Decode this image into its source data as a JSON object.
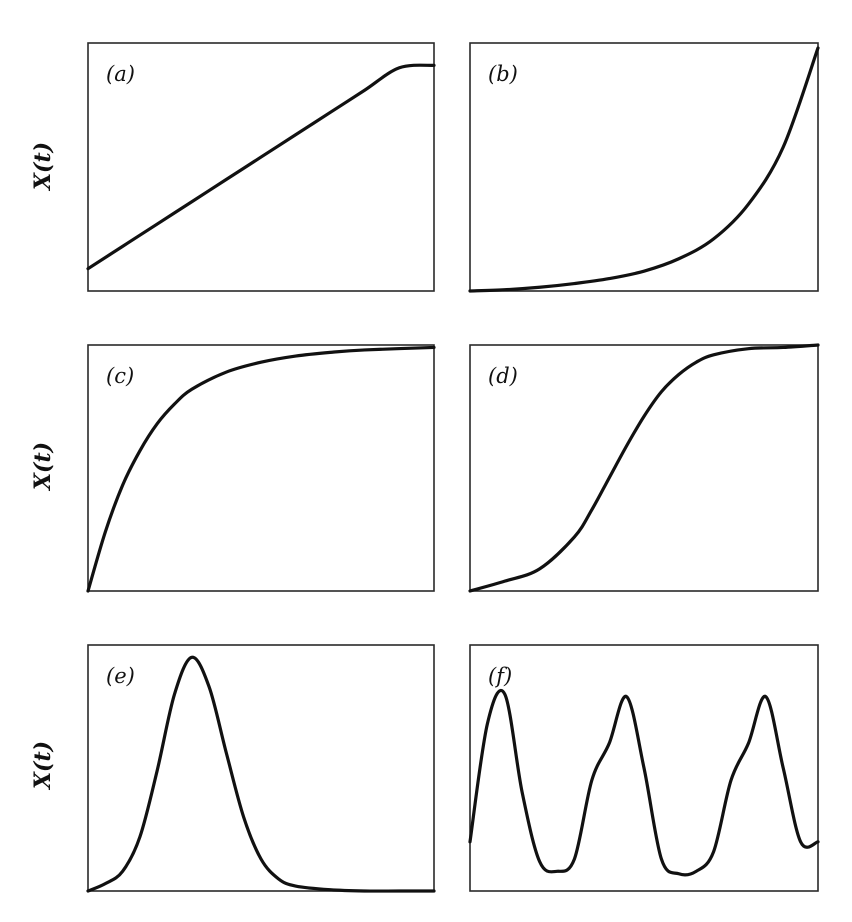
{
  "chart_data": [
    {
      "type": "line",
      "panel": "(a)",
      "ylabel": "X(t)",
      "xlim": [
        0,
        1
      ],
      "ylim": [
        0,
        1
      ],
      "series": [
        {
          "x": [
            0,
            0.1,
            0.2,
            0.3,
            0.4,
            0.5,
            0.6,
            0.7,
            0.8,
            0.9,
            1.0
          ],
          "y": [
            0.09,
            0.18,
            0.27,
            0.36,
            0.45,
            0.54,
            0.63,
            0.72,
            0.81,
            0.9,
            0.91
          ]
        }
      ]
    },
    {
      "type": "line",
      "panel": "(b)",
      "ylabel": "",
      "xlim": [
        0,
        1
      ],
      "ylim": [
        0,
        1
      ],
      "series": [
        {
          "x": [
            0,
            0.1,
            0.2,
            0.3,
            0.4,
            0.5,
            0.6,
            0.7,
            0.8,
            0.9,
            1.0
          ],
          "y": [
            0.0,
            0.005,
            0.015,
            0.03,
            0.05,
            0.08,
            0.13,
            0.21,
            0.35,
            0.58,
            0.98
          ]
        }
      ]
    },
    {
      "type": "line",
      "panel": "(c)",
      "ylabel": "X(t)",
      "xlim": [
        0,
        1
      ],
      "ylim": [
        0,
        1
      ],
      "series": [
        {
          "x": [
            0,
            0.05,
            0.1,
            0.15,
            0.2,
            0.25,
            0.3,
            0.4,
            0.5,
            0.6,
            0.7,
            0.8,
            1.0
          ],
          "y": [
            0.0,
            0.24,
            0.43,
            0.57,
            0.68,
            0.76,
            0.82,
            0.89,
            0.93,
            0.955,
            0.97,
            0.98,
            0.99
          ]
        }
      ]
    },
    {
      "type": "line",
      "panel": "(d)",
      "ylabel": "",
      "xlim": [
        0,
        1
      ],
      "ylim": [
        0,
        1
      ],
      "series": [
        {
          "x": [
            0,
            0.1,
            0.2,
            0.3,
            0.35,
            0.4,
            0.45,
            0.5,
            0.55,
            0.6,
            0.65,
            0.7,
            0.8,
            0.9,
            1.0
          ],
          "y": [
            0.0,
            0.04,
            0.09,
            0.22,
            0.33,
            0.46,
            0.59,
            0.71,
            0.81,
            0.88,
            0.93,
            0.96,
            0.985,
            0.99,
            1.0
          ]
        }
      ]
    },
    {
      "type": "line",
      "panel": "(e)",
      "ylabel": "X(t)",
      "xlim": [
        0,
        1
      ],
      "ylim": [
        0,
        1
      ],
      "series": [
        {
          "x": [
            0,
            0.05,
            0.1,
            0.15,
            0.2,
            0.25,
            0.3,
            0.35,
            0.4,
            0.45,
            0.5,
            0.55,
            0.6,
            0.7,
            0.8,
            0.9,
            1.0
          ],
          "y": [
            0.0,
            0.03,
            0.08,
            0.22,
            0.49,
            0.8,
            0.95,
            0.83,
            0.56,
            0.3,
            0.13,
            0.05,
            0.02,
            0.005,
            0.0,
            0.0,
            0.0
          ]
        }
      ]
    },
    {
      "type": "line",
      "panel": "(f)",
      "ylabel": "",
      "xlim": [
        0,
        1
      ],
      "ylim": [
        0,
        1
      ],
      "series": [
        {
          "x": [
            0,
            0.05,
            0.1,
            0.15,
            0.2,
            0.25,
            0.3,
            0.35,
            0.4,
            0.45,
            0.5,
            0.55,
            0.6,
            0.65,
            0.7,
            0.75,
            0.8,
            0.85,
            0.9,
            0.95,
            1.0
          ],
          "y": [
            0.2,
            0.68,
            0.8,
            0.4,
            0.12,
            0.08,
            0.13,
            0.45,
            0.6,
            0.79,
            0.5,
            0.13,
            0.07,
            0.08,
            0.16,
            0.45,
            0.6,
            0.79,
            0.5,
            0.2,
            0.2
          ]
        }
      ]
    }
  ]
}
